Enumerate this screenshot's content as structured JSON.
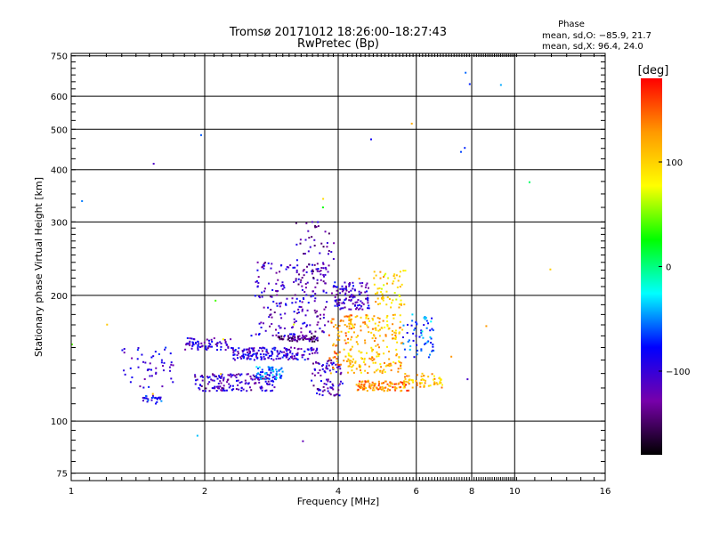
{
  "chart_data": {
    "type": "scatter",
    "title": "Tromsø 20171012 18:26:00–18:27:43",
    "subtitle": "RwPretec (Bp)",
    "xlabel": "Frequency [MHz]",
    "ylabel": "Stationary phase Virtual Height [km]",
    "xscale": "log",
    "yscale": "log",
    "xlim": [
      1,
      16
    ],
    "ylim": [
      72,
      760
    ],
    "x_ticks": [
      1,
      2,
      4,
      6,
      8,
      10,
      16
    ],
    "x_tick_labels": [
      "1",
      "2",
      "4",
      "6",
      "8",
      "10",
      "16"
    ],
    "y_ticks": [
      75,
      100,
      200,
      300,
      400,
      500,
      600,
      750
    ],
    "y_tick_labels": [
      "75",
      "100",
      "200",
      "300",
      "400",
      "500",
      "600",
      "750"
    ],
    "grid": true,
    "stats": {
      "heading": "Phase",
      "line_o": "mean, sd,O: −85.9, 21.7",
      "line_x": "mean, sd,X:  96.4, 24.0"
    },
    "colorbar": {
      "label": "[deg]",
      "range": [
        -180,
        180
      ],
      "ticks": [
        100,
        0,
        -100
      ],
      "tick_labels": [
        "100",
        "0",
        "−100"
      ],
      "colors": [
        "#ff0000",
        "#ff9900",
        "#ffff00",
        "#00ff00",
        "#00ffff",
        "#0000ff",
        "#7700aa",
        "#000000"
      ]
    },
    "clusters": [
      {
        "x": [
          1.9,
          2.9
        ],
        "y": [
          118,
          130
        ],
        "phase": -110,
        "n": 160
      },
      {
        "x": [
          1.8,
          2.3
        ],
        "y": [
          148,
          158
        ],
        "phase": -105,
        "n": 70
      },
      {
        "x": [
          2.3,
          3.6
        ],
        "y": [
          140,
          150
        ],
        "phase": -100,
        "n": 180
      },
      {
        "x": [
          2.6,
          3.0
        ],
        "y": [
          125,
          135
        ],
        "phase": -55,
        "n": 60
      },
      {
        "x": [
          2.9,
          3.6
        ],
        "y": [
          155,
          160
        ],
        "phase": -140,
        "n": 70
      },
      {
        "x": [
          2.6,
          3.8
        ],
        "y": [
          160,
          240
        ],
        "phase": -110,
        "n": 200
      },
      {
        "x": [
          3.2,
          4.0
        ],
        "y": [
          200,
          300
        ],
        "phase": -120,
        "n": 60
      },
      {
        "x": [
          3.5,
          4.1
        ],
        "y": [
          115,
          140
        ],
        "phase": -110,
        "n": 80
      },
      {
        "x": [
          3.9,
          4.7
        ],
        "y": [
          185,
          215
        ],
        "phase": -105,
        "n": 110
      },
      {
        "x": [
          3.8,
          4.3
        ],
        "y": [
          130,
          180
        ],
        "phase": 130,
        "n": 70
      },
      {
        "x": [
          4.2,
          5.6
        ],
        "y": [
          130,
          180
        ],
        "phase": 110,
        "n": 200
      },
      {
        "x": [
          4.4,
          5.8
        ],
        "y": [
          118,
          125
        ],
        "phase": 140,
        "n": 110
      },
      {
        "x": [
          4.8,
          5.7
        ],
        "y": [
          185,
          230
        ],
        "phase": 100,
        "n": 60
      },
      {
        "x": [
          5.6,
          6.9
        ],
        "y": [
          120,
          130
        ],
        "phase": 110,
        "n": 60
      },
      {
        "x": [
          5.6,
          6.6
        ],
        "y": [
          140,
          180
        ],
        "phase": -60,
        "n": 60
      },
      {
        "x": [
          1.3,
          1.7
        ],
        "y": [
          120,
          150
        ],
        "phase": -100,
        "n": 50
      },
      {
        "x": [
          1.45,
          1.6
        ],
        "y": [
          110,
          115
        ],
        "phase": -80,
        "n": 25
      },
      {
        "x": [
          1.0,
          12.5
        ],
        "y": [
          80,
          700
        ],
        "phase": 0,
        "n": 30
      }
    ]
  }
}
